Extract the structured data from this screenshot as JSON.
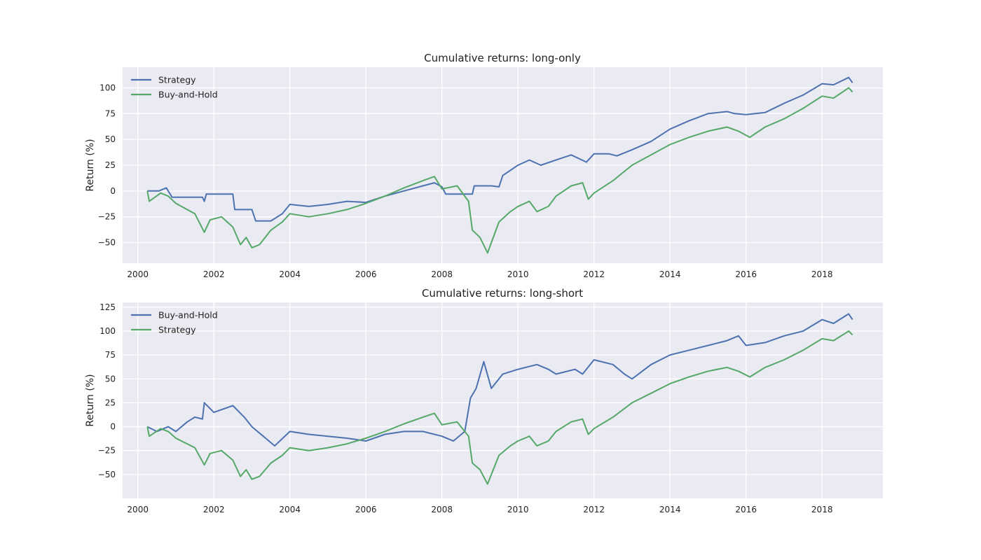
{
  "chart_data": [
    {
      "type": "line",
      "title": "Cumulative returns: long-only",
      "xlabel": "",
      "ylabel": "Return (%)",
      "xlim": [
        1999.6,
        2019.6
      ],
      "ylim": [
        -70,
        120
      ],
      "x_ticks": [
        "2000",
        "2002",
        "2004",
        "2006",
        "2008",
        "2010",
        "2012",
        "2014",
        "2016",
        "2018"
      ],
      "y_ticks": [
        "−50",
        "−25",
        "0",
        "25",
        "50",
        "75",
        "100"
      ],
      "grid": true,
      "legend_position": "top-left",
      "series": [
        {
          "name": "Strategy",
          "color": "#4c72b0",
          "points": [
            [
              2000.25,
              0
            ],
            [
              2000.55,
              0
            ],
            [
              2000.75,
              3
            ],
            [
              2000.9,
              -6
            ],
            [
              2001.5,
              -6
            ],
            [
              2001.7,
              -6
            ],
            [
              2001.75,
              -10
            ],
            [
              2001.8,
              -3
            ],
            [
              2002.5,
              -3
            ],
            [
              2002.55,
              -18
            ],
            [
              2003.0,
              -18
            ],
            [
              2003.1,
              -29
            ],
            [
              2003.5,
              -29
            ],
            [
              2003.8,
              -22
            ],
            [
              2004.0,
              -13
            ],
            [
              2004.5,
              -15
            ],
            [
              2005.0,
              -13
            ],
            [
              2005.5,
              -10
            ],
            [
              2006.0,
              -11
            ],
            [
              2006.5,
              -5
            ],
            [
              2007.0,
              0
            ],
            [
              2007.5,
              5
            ],
            [
              2007.8,
              8
            ],
            [
              2008.0,
              4
            ],
            [
              2008.1,
              -3
            ],
            [
              2008.8,
              -3
            ],
            [
              2008.85,
              5
            ],
            [
              2009.3,
              5
            ],
            [
              2009.5,
              4
            ],
            [
              2009.6,
              15
            ],
            [
              2010.0,
              25
            ],
            [
              2010.3,
              30
            ],
            [
              2010.6,
              25
            ],
            [
              2011.0,
              30
            ],
            [
              2011.4,
              35
            ],
            [
              2011.8,
              28
            ],
            [
              2012.0,
              36
            ],
            [
              2012.4,
              36
            ],
            [
              2012.6,
              34
            ],
            [
              2013.0,
              40
            ],
            [
              2013.5,
              48
            ],
            [
              2014.0,
              60
            ],
            [
              2014.5,
              68
            ],
            [
              2015.0,
              75
            ],
            [
              2015.5,
              77
            ],
            [
              2015.7,
              75
            ],
            [
              2016.0,
              74
            ],
            [
              2016.5,
              76
            ],
            [
              2017.0,
              85
            ],
            [
              2017.5,
              93
            ],
            [
              2018.0,
              104
            ],
            [
              2018.3,
              103
            ],
            [
              2018.7,
              110
            ],
            [
              2018.8,
              105
            ]
          ]
        },
        {
          "name": "Buy-and-Hold",
          "color": "#55a868",
          "points": [
            [
              2000.25,
              0
            ],
            [
              2000.3,
              -10
            ],
            [
              2000.6,
              -2
            ],
            [
              2000.8,
              -5
            ],
            [
              2001.0,
              -12
            ],
            [
              2001.3,
              -18
            ],
            [
              2001.5,
              -22
            ],
            [
              2001.75,
              -40
            ],
            [
              2001.9,
              -28
            ],
            [
              2002.2,
              -25
            ],
            [
              2002.5,
              -35
            ],
            [
              2002.7,
              -52
            ],
            [
              2002.85,
              -45
            ],
            [
              2003.0,
              -55
            ],
            [
              2003.2,
              -52
            ],
            [
              2003.5,
              -38
            ],
            [
              2003.8,
              -30
            ],
            [
              2004.0,
              -22
            ],
            [
              2004.5,
              -25
            ],
            [
              2005.0,
              -22
            ],
            [
              2005.5,
              -18
            ],
            [
              2006.0,
              -12
            ],
            [
              2006.5,
              -5
            ],
            [
              2007.0,
              3
            ],
            [
              2007.5,
              10
            ],
            [
              2007.8,
              14
            ],
            [
              2008.0,
              2
            ],
            [
              2008.4,
              5
            ],
            [
              2008.7,
              -10
            ],
            [
              2008.8,
              -38
            ],
            [
              2009.0,
              -45
            ],
            [
              2009.2,
              -60
            ],
            [
              2009.5,
              -30
            ],
            [
              2009.8,
              -20
            ],
            [
              2010.0,
              -15
            ],
            [
              2010.3,
              -10
            ],
            [
              2010.5,
              -20
            ],
            [
              2010.8,
              -15
            ],
            [
              2011.0,
              -5
            ],
            [
              2011.4,
              5
            ],
            [
              2011.7,
              8
            ],
            [
              2011.85,
              -8
            ],
            [
              2012.0,
              -2
            ],
            [
              2012.5,
              10
            ],
            [
              2013.0,
              25
            ],
            [
              2013.5,
              35
            ],
            [
              2014.0,
              45
            ],
            [
              2014.5,
              52
            ],
            [
              2015.0,
              58
            ],
            [
              2015.5,
              62
            ],
            [
              2015.8,
              58
            ],
            [
              2016.1,
              52
            ],
            [
              2016.5,
              62
            ],
            [
              2017.0,
              70
            ],
            [
              2017.5,
              80
            ],
            [
              2018.0,
              92
            ],
            [
              2018.3,
              90
            ],
            [
              2018.7,
              100
            ],
            [
              2018.8,
              96
            ]
          ]
        }
      ]
    },
    {
      "type": "line",
      "title": "Cumulative returns: long-short",
      "xlabel": "",
      "ylabel": "Return (%)",
      "xlim": [
        1999.6,
        2019.6
      ],
      "ylim": [
        -75,
        130
      ],
      "x_ticks": [
        "2000",
        "2002",
        "2004",
        "2006",
        "2008",
        "2010",
        "2012",
        "2014",
        "2016",
        "2018"
      ],
      "y_ticks": [
        "−50",
        "−25",
        "0",
        "25",
        "50",
        "75",
        "100",
        "125"
      ],
      "grid": true,
      "legend_position": "top-left",
      "series": [
        {
          "name": "Buy-and-Hold",
          "color": "#4c72b0",
          "points": [
            [
              2000.25,
              0
            ],
            [
              2000.5,
              -5
            ],
            [
              2000.8,
              0
            ],
            [
              2001.0,
              -5
            ],
            [
              2001.3,
              5
            ],
            [
              2001.5,
              10
            ],
            [
              2001.7,
              8
            ],
            [
              2001.75,
              25
            ],
            [
              2002.0,
              15
            ],
            [
              2002.5,
              22
            ],
            [
              2002.8,
              10
            ],
            [
              2003.0,
              0
            ],
            [
              2003.3,
              -10
            ],
            [
              2003.6,
              -20
            ],
            [
              2004.0,
              -5
            ],
            [
              2004.5,
              -8
            ],
            [
              2005.0,
              -10
            ],
            [
              2005.5,
              -12
            ],
            [
              2006.0,
              -15
            ],
            [
              2006.5,
              -8
            ],
            [
              2007.0,
              -5
            ],
            [
              2007.5,
              -5
            ],
            [
              2008.0,
              -10
            ],
            [
              2008.3,
              -15
            ],
            [
              2008.6,
              -5
            ],
            [
              2008.75,
              30
            ],
            [
              2008.9,
              40
            ],
            [
              2009.1,
              68
            ],
            [
              2009.3,
              40
            ],
            [
              2009.6,
              55
            ],
            [
              2010.0,
              60
            ],
            [
              2010.5,
              65
            ],
            [
              2010.8,
              60
            ],
            [
              2011.0,
              55
            ],
            [
              2011.5,
              60
            ],
            [
              2011.7,
              55
            ],
            [
              2012.0,
              70
            ],
            [
              2012.5,
              65
            ],
            [
              2012.8,
              55
            ],
            [
              2013.0,
              50
            ],
            [
              2013.5,
              65
            ],
            [
              2014.0,
              75
            ],
            [
              2014.5,
              80
            ],
            [
              2015.0,
              85
            ],
            [
              2015.5,
              90
            ],
            [
              2015.8,
              95
            ],
            [
              2016.0,
              85
            ],
            [
              2016.5,
              88
            ],
            [
              2017.0,
              95
            ],
            [
              2017.5,
              100
            ],
            [
              2018.0,
              112
            ],
            [
              2018.3,
              108
            ],
            [
              2018.7,
              118
            ],
            [
              2018.8,
              112
            ]
          ]
        },
        {
          "name": "Strategy",
          "color": "#55a868",
          "points": [
            [
              2000.25,
              0
            ],
            [
              2000.3,
              -10
            ],
            [
              2000.6,
              -2
            ],
            [
              2000.8,
              -5
            ],
            [
              2001.0,
              -12
            ],
            [
              2001.3,
              -18
            ],
            [
              2001.5,
              -22
            ],
            [
              2001.75,
              -40
            ],
            [
              2001.9,
              -28
            ],
            [
              2002.2,
              -25
            ],
            [
              2002.5,
              -35
            ],
            [
              2002.7,
              -52
            ],
            [
              2002.85,
              -45
            ],
            [
              2003.0,
              -55
            ],
            [
              2003.2,
              -52
            ],
            [
              2003.5,
              -38
            ],
            [
              2003.8,
              -30
            ],
            [
              2004.0,
              -22
            ],
            [
              2004.5,
              -25
            ],
            [
              2005.0,
              -22
            ],
            [
              2005.5,
              -18
            ],
            [
              2006.0,
              -12
            ],
            [
              2006.5,
              -5
            ],
            [
              2007.0,
              3
            ],
            [
              2007.5,
              10
            ],
            [
              2007.8,
              14
            ],
            [
              2008.0,
              2
            ],
            [
              2008.4,
              5
            ],
            [
              2008.7,
              -10
            ],
            [
              2008.8,
              -38
            ],
            [
              2009.0,
              -45
            ],
            [
              2009.2,
              -60
            ],
            [
              2009.5,
              -30
            ],
            [
              2009.8,
              -20
            ],
            [
              2010.0,
              -15
            ],
            [
              2010.3,
              -10
            ],
            [
              2010.5,
              -20
            ],
            [
              2010.8,
              -15
            ],
            [
              2011.0,
              -5
            ],
            [
              2011.4,
              5
            ],
            [
              2011.7,
              8
            ],
            [
              2011.85,
              -8
            ],
            [
              2012.0,
              -2
            ],
            [
              2012.5,
              10
            ],
            [
              2013.0,
              25
            ],
            [
              2013.5,
              35
            ],
            [
              2014.0,
              45
            ],
            [
              2014.5,
              52
            ],
            [
              2015.0,
              58
            ],
            [
              2015.5,
              62
            ],
            [
              2015.8,
              58
            ],
            [
              2016.1,
              52
            ],
            [
              2016.5,
              62
            ],
            [
              2017.0,
              70
            ],
            [
              2017.5,
              80
            ],
            [
              2018.0,
              92
            ],
            [
              2018.3,
              90
            ],
            [
              2018.7,
              100
            ],
            [
              2018.8,
              96
            ]
          ]
        }
      ]
    }
  ]
}
